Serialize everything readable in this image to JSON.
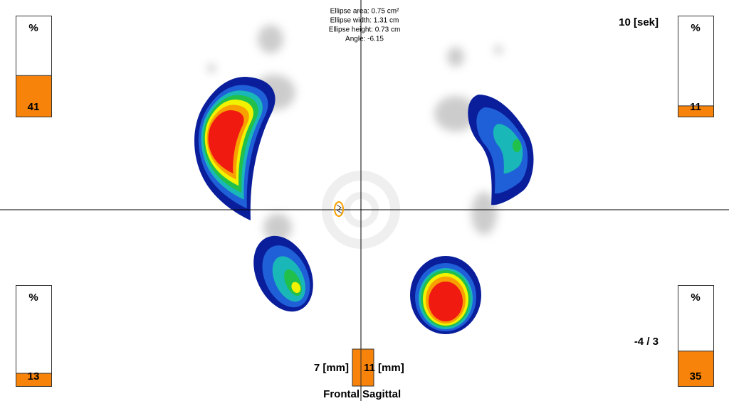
{
  "ellipse_info": [
    "Ellipse area: 0.75 cm²",
    "Ellipse width: 1.31 cm",
    "Ellipse height: 0.73 cm",
    "Angle: -6.15"
  ],
  "time_label": "10 [sek]",
  "quadrants": [
    {
      "header": "%",
      "value": 41
    },
    {
      "header": "%",
      "value": 11
    },
    {
      "header": "%",
      "value": 13
    },
    {
      "header": "%",
      "value": 35
    }
  ],
  "ratio_label": "-4 / 3",
  "frontal": {
    "value_label": "7 [mm]",
    "name": "Frontal"
  },
  "sagittal": {
    "value_label": "11 [mm]",
    "name": "Sagittal"
  }
}
